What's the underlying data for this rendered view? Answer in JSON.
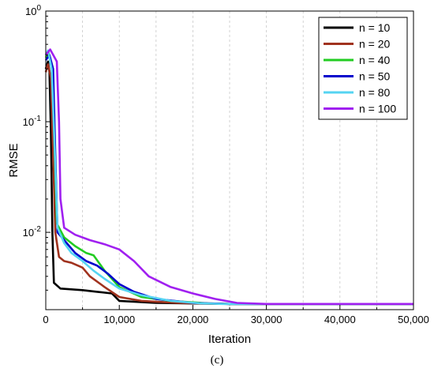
{
  "caption": "(c)",
  "chart_data": {
    "type": "line",
    "title": "",
    "xlabel": "Iteration",
    "ylabel": "RMSE",
    "yscale": "log",
    "xlim": [
      0,
      50000
    ],
    "ylim": [
      0.002,
      1
    ],
    "xticks": [
      0,
      10000,
      20000,
      30000,
      40000,
      50000
    ],
    "xtick_labels": [
      "0",
      "10,000",
      "20,000",
      "30,000",
      "40,000",
      "50,000"
    ],
    "yticks": [
      {
        "value": 1,
        "base": "10",
        "exp": "0"
      },
      {
        "value": 0.1,
        "base": "10",
        "exp": "-1"
      },
      {
        "value": 0.01,
        "base": "10",
        "exp": "-2"
      }
    ],
    "grid": "vertical dashed",
    "legend_position": "top-right",
    "series": [
      {
        "name": "n = 10",
        "color": "#000000",
        "points": [
          [
            0,
            0.3
          ],
          [
            300,
            0.35
          ],
          [
            500,
            0.28
          ],
          [
            700,
            0.08
          ],
          [
            900,
            0.01
          ],
          [
            1100,
            0.0035
          ],
          [
            2000,
            0.0031
          ],
          [
            5000,
            0.003
          ],
          [
            7000,
            0.0029
          ],
          [
            9000,
            0.0028
          ],
          [
            10000,
            0.0024
          ],
          [
            15000,
            0.0023
          ],
          [
            25000,
            0.00225
          ],
          [
            50000,
            0.00225
          ]
        ]
      },
      {
        "name": "n = 20",
        "color": "#A0321E",
        "points": [
          [
            0,
            0.28
          ],
          [
            300,
            0.33
          ],
          [
            700,
            0.25
          ],
          [
            1000,
            0.05
          ],
          [
            1300,
            0.01
          ],
          [
            1800,
            0.006
          ],
          [
            2500,
            0.0055
          ],
          [
            3500,
            0.0053
          ],
          [
            5000,
            0.0048
          ],
          [
            6000,
            0.004
          ],
          [
            8000,
            0.0032
          ],
          [
            10000,
            0.0026
          ],
          [
            13000,
            0.0024
          ],
          [
            18000,
            0.0023
          ],
          [
            25000,
            0.00225
          ],
          [
            50000,
            0.00225
          ]
        ]
      },
      {
        "name": "n = 40",
        "color": "#22CC22",
        "points": [
          [
            0,
            0.38
          ],
          [
            400,
            0.42
          ],
          [
            900,
            0.3
          ],
          [
            1200,
            0.06
          ],
          [
            1500,
            0.012
          ],
          [
            2500,
            0.009
          ],
          [
            4000,
            0.0075
          ],
          [
            5500,
            0.0065
          ],
          [
            6500,
            0.0062
          ],
          [
            8000,
            0.0045
          ],
          [
            10000,
            0.0032
          ],
          [
            13000,
            0.0026
          ],
          [
            17000,
            0.0024
          ],
          [
            22000,
            0.00228
          ],
          [
            25000,
            0.00225
          ],
          [
            50000,
            0.00225
          ]
        ]
      },
      {
        "name": "n = 50",
        "color": "#0000CC",
        "points": [
          [
            0,
            0.36
          ],
          [
            500,
            0.4
          ],
          [
            1000,
            0.3
          ],
          [
            1300,
            0.05
          ],
          [
            1600,
            0.01
          ],
          [
            2500,
            0.0085
          ],
          [
            4000,
            0.0065
          ],
          [
            5500,
            0.0055
          ],
          [
            7000,
            0.005
          ],
          [
            8500,
            0.0042
          ],
          [
            10000,
            0.0034
          ],
          [
            12000,
            0.0029
          ],
          [
            15000,
            0.0025
          ],
          [
            20000,
            0.0023
          ],
          [
            25000,
            0.00225
          ],
          [
            50000,
            0.00225
          ]
        ]
      },
      {
        "name": "n = 80",
        "color": "#55D4F2",
        "points": [
          [
            0,
            0.4
          ],
          [
            300,
            0.44
          ],
          [
            800,
            0.3
          ],
          [
            1200,
            0.06
          ],
          [
            1600,
            0.011
          ],
          [
            2500,
            0.008
          ],
          [
            3500,
            0.0065
          ],
          [
            5000,
            0.0055
          ],
          [
            6500,
            0.0045
          ],
          [
            8000,
            0.0038
          ],
          [
            10000,
            0.0031
          ],
          [
            13000,
            0.0027
          ],
          [
            17000,
            0.0024
          ],
          [
            21000,
            0.00228
          ],
          [
            24000,
            0.00225
          ],
          [
            50000,
            0.00225
          ]
        ]
      },
      {
        "name": "n = 100",
        "color": "#A020F0",
        "points": [
          [
            0,
            0.4
          ],
          [
            600,
            0.45
          ],
          [
            1500,
            0.35
          ],
          [
            1800,
            0.1
          ],
          [
            2000,
            0.02
          ],
          [
            2500,
            0.011
          ],
          [
            4000,
            0.0095
          ],
          [
            6000,
            0.0085
          ],
          [
            8000,
            0.0078
          ],
          [
            10000,
            0.007
          ],
          [
            12000,
            0.0055
          ],
          [
            14000,
            0.004
          ],
          [
            17000,
            0.0032
          ],
          [
            20000,
            0.0028
          ],
          [
            23000,
            0.0025
          ],
          [
            26000,
            0.0023
          ],
          [
            30000,
            0.00225
          ],
          [
            50000,
            0.00225
          ]
        ]
      }
    ]
  }
}
